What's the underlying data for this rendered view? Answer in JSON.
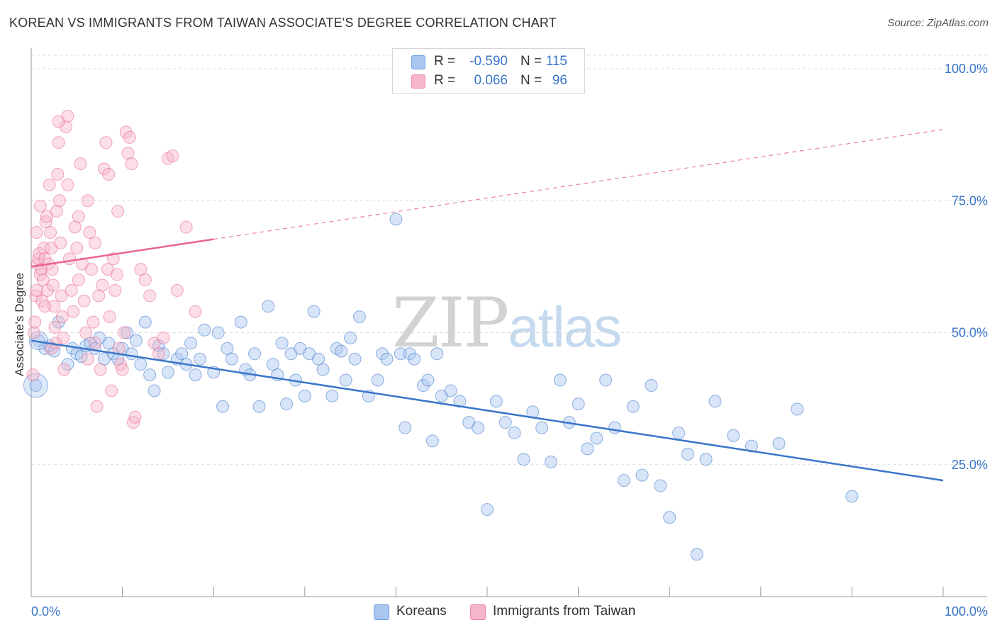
{
  "header": {
    "title": "KOREAN VS IMMIGRANTS FROM TAIWAN ASSOCIATE'S DEGREE CORRELATION CHART",
    "source": "Source: ZipAtlas.com"
  },
  "stats_box": {
    "rows": [
      {
        "r_label": "R =",
        "r_value": "-0.590",
        "n_label": "N =",
        "n_value": "115",
        "color": "#a9c6f0"
      },
      {
        "r_label": "R =",
        "r_value": "0.066",
        "n_label": "N =",
        "n_value": "96",
        "color": "#f7b5ca"
      }
    ]
  },
  "watermark": {
    "zip": "ZIP",
    "atlas": "atlas"
  },
  "legend": {
    "items": [
      {
        "label": "Koreans",
        "color": "#a9c6f0"
      },
      {
        "label": "Immigrants from Taiwan",
        "color": "#f7b5ca"
      }
    ]
  },
  "chart_data": {
    "type": "scatter",
    "title": "KOREAN VS IMMIGRANTS FROM TAIWAN ASSOCIATE'S DEGREE CORRELATION CHART",
    "xlabel": "",
    "ylabel": "Associate's Degree",
    "xlim": [
      0,
      100
    ],
    "ylim": [
      0,
      100
    ],
    "x_tick_labels": [
      "0.0%",
      "100.0%"
    ],
    "y_ticks": [
      25,
      50,
      75,
      100
    ],
    "y_tick_labels": [
      "25.0%",
      "50.0%",
      "75.0%",
      "100.0%"
    ],
    "grid": "horizontal dashed",
    "legend_position": "bottom",
    "series": [
      {
        "name": "Koreans",
        "color": "#3a76c9",
        "fill": "#a9c6f0",
        "trend": {
          "x0": 0,
          "y0": 48.5,
          "x1": 100,
          "y1": 22,
          "style": "solid"
        },
        "points": [
          [
            0.5,
            40
          ],
          [
            0.8,
            48.5
          ],
          [
            1.5,
            47
          ],
          [
            2.0,
            47.5
          ],
          [
            2.5,
            46.5
          ],
          [
            3.0,
            52
          ],
          [
            4.0,
            44
          ],
          [
            4.5,
            47
          ],
          [
            5.0,
            46
          ],
          [
            5.5,
            45.5
          ],
          [
            6.0,
            47.5
          ],
          [
            6.5,
            48
          ],
          [
            7.0,
            47
          ],
          [
            7.5,
            49
          ],
          [
            8.0,
            45
          ],
          [
            8.5,
            48
          ],
          [
            9.0,
            46
          ],
          [
            9.5,
            45
          ],
          [
            10.0,
            47
          ],
          [
            10.5,
            50
          ],
          [
            11.0,
            46
          ],
          [
            11.5,
            48.5
          ],
          [
            12.0,
            44
          ],
          [
            12.5,
            52
          ],
          [
            13.0,
            42
          ],
          [
            13.5,
            39
          ],
          [
            14.0,
            47.5
          ],
          [
            14.5,
            46
          ],
          [
            15.0,
            42.5
          ],
          [
            16.0,
            45
          ],
          [
            16.5,
            46
          ],
          [
            17.0,
            44
          ],
          [
            17.5,
            48
          ],
          [
            18.0,
            42
          ],
          [
            18.5,
            45
          ],
          [
            19.0,
            50.5
          ],
          [
            20.0,
            42.5
          ],
          [
            20.5,
            50
          ],
          [
            21.0,
            36
          ],
          [
            21.5,
            47
          ],
          [
            22.0,
            45
          ],
          [
            23.0,
            52
          ],
          [
            23.5,
            43
          ],
          [
            24.0,
            42
          ],
          [
            24.5,
            46
          ],
          [
            25.0,
            36
          ],
          [
            26.0,
            55
          ],
          [
            26.5,
            44
          ],
          [
            27.0,
            42
          ],
          [
            27.5,
            48
          ],
          [
            28.0,
            36.5
          ],
          [
            28.5,
            46
          ],
          [
            29.0,
            41
          ],
          [
            29.5,
            47
          ],
          [
            30.0,
            38
          ],
          [
            30.5,
            46
          ],
          [
            31.0,
            54
          ],
          [
            31.5,
            45
          ],
          [
            32.0,
            43
          ],
          [
            33.0,
            38
          ],
          [
            33.5,
            47
          ],
          [
            34.0,
            46.5
          ],
          [
            34.5,
            41
          ],
          [
            35.0,
            49
          ],
          [
            35.5,
            45
          ],
          [
            36.0,
            53
          ],
          [
            37.0,
            38
          ],
          [
            38.0,
            41
          ],
          [
            38.5,
            46
          ],
          [
            39.0,
            45
          ],
          [
            40.0,
            71.5
          ],
          [
            40.5,
            46
          ],
          [
            41.0,
            32
          ],
          [
            41.5,
            46
          ],
          [
            42.0,
            45
          ],
          [
            43.0,
            40
          ],
          [
            43.5,
            41
          ],
          [
            44.0,
            29.5
          ],
          [
            44.5,
            46
          ],
          [
            45.0,
            38
          ],
          [
            46.0,
            39
          ],
          [
            47.0,
            37
          ],
          [
            48.0,
            33
          ],
          [
            49.0,
            32
          ],
          [
            50.0,
            16.5
          ],
          [
            51.0,
            37
          ],
          [
            52.0,
            33
          ],
          [
            53.0,
            31
          ],
          [
            54.0,
            26
          ],
          [
            55.0,
            35
          ],
          [
            56.0,
            32
          ],
          [
            57.0,
            25.5
          ],
          [
            58.0,
            41
          ],
          [
            59.0,
            33
          ],
          [
            60.0,
            36.5
          ],
          [
            61.0,
            28
          ],
          [
            62.0,
            30
          ],
          [
            63.0,
            41
          ],
          [
            64.0,
            32
          ],
          [
            65.0,
            22
          ],
          [
            66.0,
            36
          ],
          [
            67.0,
            23
          ],
          [
            68.0,
            40
          ],
          [
            69.0,
            21
          ],
          [
            70.0,
            15
          ],
          [
            71.0,
            31
          ],
          [
            72.0,
            27
          ],
          [
            73.0,
            8
          ],
          [
            74.0,
            26
          ],
          [
            75.0,
            37
          ],
          [
            77.0,
            30.5
          ],
          [
            79.0,
            28.5
          ],
          [
            82.0,
            29
          ],
          [
            84.0,
            35.5
          ],
          [
            90.0,
            19
          ]
        ]
      },
      {
        "name": "Immigrants from Taiwan",
        "color": "#e8648f",
        "fill": "#f7b5ca",
        "trend": {
          "x0": 0,
          "y0": 62.5,
          "x1": 100,
          "y1": 88.5,
          "style": "solid-then-dashed",
          "solid_until_x": 20
        },
        "points": [
          [
            0.2,
            42
          ],
          [
            0.3,
            50
          ],
          [
            0.4,
            52
          ],
          [
            0.5,
            57
          ],
          [
            0.6,
            58
          ],
          [
            0.7,
            63
          ],
          [
            0.8,
            64
          ],
          [
            0.9,
            65
          ],
          [
            1.0,
            61
          ],
          [
            1.1,
            62
          ],
          [
            1.2,
            56
          ],
          [
            1.3,
            60
          ],
          [
            1.4,
            66
          ],
          [
            1.5,
            64
          ],
          [
            1.6,
            71
          ],
          [
            1.7,
            72
          ],
          [
            1.8,
            58
          ],
          [
            1.9,
            63
          ],
          [
            2.0,
            78
          ],
          [
            2.1,
            69
          ],
          [
            2.2,
            66
          ],
          [
            2.3,
            62
          ],
          [
            2.4,
            59
          ],
          [
            2.5,
            55
          ],
          [
            2.6,
            51
          ],
          [
            2.7,
            48
          ],
          [
            2.8,
            73
          ],
          [
            2.9,
            80
          ],
          [
            3.0,
            86
          ],
          [
            3.1,
            75
          ],
          [
            3.2,
            67
          ],
          [
            3.3,
            57
          ],
          [
            3.4,
            53
          ],
          [
            3.5,
            49
          ],
          [
            3.6,
            43
          ],
          [
            3.8,
            89
          ],
          [
            4.0,
            78
          ],
          [
            4.2,
            64
          ],
          [
            4.4,
            58
          ],
          [
            4.6,
            54
          ],
          [
            4.8,
            70
          ],
          [
            5.0,
            66
          ],
          [
            5.2,
            60
          ],
          [
            5.4,
            82
          ],
          [
            5.6,
            63
          ],
          [
            5.8,
            56
          ],
          [
            6.0,
            50
          ],
          [
            6.2,
            45
          ],
          [
            6.4,
            69
          ],
          [
            6.6,
            62
          ],
          [
            6.8,
            52
          ],
          [
            7.0,
            48
          ],
          [
            7.2,
            36
          ],
          [
            7.4,
            57
          ],
          [
            7.6,
            43
          ],
          [
            7.8,
            59
          ],
          [
            8.0,
            81
          ],
          [
            8.2,
            86
          ],
          [
            8.4,
            62
          ],
          [
            8.6,
            53
          ],
          [
            8.8,
            39
          ],
          [
            9.0,
            64
          ],
          [
            9.2,
            58
          ],
          [
            9.4,
            61
          ],
          [
            9.6,
            47
          ],
          [
            9.8,
            44
          ],
          [
            10.0,
            43
          ],
          [
            10.2,
            50
          ],
          [
            10.4,
            88
          ],
          [
            10.6,
            84
          ],
          [
            10.8,
            87
          ],
          [
            11.0,
            82
          ],
          [
            11.2,
            33
          ],
          [
            11.4,
            34
          ],
          [
            12.0,
            62
          ],
          [
            12.5,
            60
          ],
          [
            13.0,
            57
          ],
          [
            13.5,
            48
          ],
          [
            14.0,
            46
          ],
          [
            14.5,
            49
          ],
          [
            15.0,
            83
          ],
          [
            15.5,
            83.5
          ],
          [
            16.0,
            58
          ],
          [
            17.0,
            70
          ],
          [
            18.0,
            54
          ],
          [
            0.6,
            69
          ],
          [
            1.0,
            74
          ],
          [
            1.5,
            55
          ],
          [
            2.2,
            47
          ],
          [
            3.0,
            90
          ],
          [
            4.0,
            91
          ],
          [
            5.2,
            72
          ],
          [
            6.2,
            75
          ],
          [
            7.0,
            67
          ],
          [
            8.5,
            80
          ],
          [
            9.5,
            73
          ]
        ]
      }
    ]
  }
}
